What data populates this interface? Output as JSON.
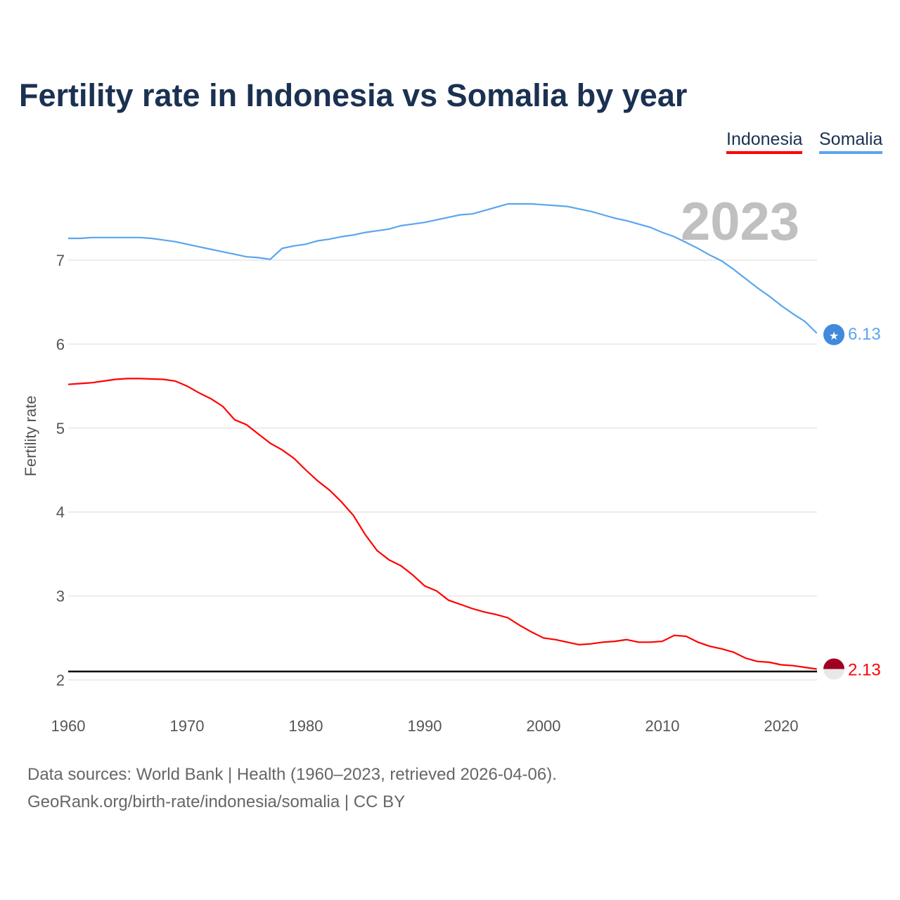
{
  "title": "Fertility rate in Indonesia vs Somalia by year",
  "current_year": "2023",
  "source_line1": "Data sources: World Bank | Health (1960–2023, retrieved 2026-04-06).",
  "source_line2": "GeoRank.org/birth-rate/indonesia/somalia | CC BY",
  "chart_data": {
    "type": "line",
    "title": "Fertility rate in Indonesia vs Somalia by year",
    "xlabel": "",
    "ylabel": "Fertility rate",
    "xlim": [
      1960,
      2023
    ],
    "ylim": [
      2,
      7.8
    ],
    "x_ticks": [
      "1960",
      "1970",
      "1980",
      "1990",
      "2000",
      "2010",
      "2020"
    ],
    "y_ticks": [
      "2",
      "3",
      "4",
      "5",
      "6",
      "7"
    ],
    "grid": true,
    "legend": "top-right",
    "reference_line": {
      "value": 2.1,
      "color": "#000000"
    },
    "x": [
      1960,
      1961,
      1962,
      1963,
      1964,
      1965,
      1966,
      1967,
      1968,
      1969,
      1970,
      1971,
      1972,
      1973,
      1974,
      1975,
      1976,
      1977,
      1978,
      1979,
      1980,
      1981,
      1982,
      1983,
      1984,
      1985,
      1986,
      1987,
      1988,
      1989,
      1990,
      1991,
      1992,
      1993,
      1994,
      1995,
      1996,
      1997,
      1998,
      1999,
      2000,
      2001,
      2002,
      2003,
      2004,
      2005,
      2006,
      2007,
      2008,
      2009,
      2010,
      2011,
      2012,
      2013,
      2014,
      2015,
      2016,
      2017,
      2018,
      2019,
      2020,
      2021,
      2022,
      2023
    ],
    "series": [
      {
        "name": "Indonesia",
        "color": "#ff0000",
        "end_label": "2.13",
        "values": [
          5.52,
          5.53,
          5.54,
          5.56,
          5.58,
          5.59,
          5.59,
          5.585,
          5.58,
          5.56,
          5.5,
          5.42,
          5.35,
          5.26,
          5.1,
          5.04,
          4.93,
          4.82,
          4.74,
          4.64,
          4.5,
          4.37,
          4.26,
          4.12,
          3.96,
          3.73,
          3.54,
          3.43,
          3.36,
          3.25,
          3.12,
          3.06,
          2.95,
          2.9,
          2.85,
          2.81,
          2.78,
          2.74,
          2.65,
          2.57,
          2.5,
          2.48,
          2.45,
          2.42,
          2.43,
          2.45,
          2.46,
          2.48,
          2.45,
          2.45,
          2.46,
          2.53,
          2.52,
          2.45,
          2.4,
          2.37,
          2.33,
          2.26,
          2.22,
          2.21,
          2.18,
          2.17,
          2.15,
          2.13
        ]
      },
      {
        "name": "Somalia",
        "color": "#5aa5ef",
        "end_label": "6.13",
        "values": [
          7.26,
          7.26,
          7.27,
          7.27,
          7.27,
          7.27,
          7.27,
          7.26,
          7.24,
          7.22,
          7.19,
          7.16,
          7.13,
          7.1,
          7.07,
          7.04,
          7.03,
          7.01,
          7.14,
          7.17,
          7.19,
          7.23,
          7.25,
          7.28,
          7.3,
          7.33,
          7.35,
          7.37,
          7.41,
          7.43,
          7.45,
          7.48,
          7.51,
          7.54,
          7.55,
          7.59,
          7.63,
          7.67,
          7.67,
          7.67,
          7.66,
          7.65,
          7.64,
          7.61,
          7.58,
          7.54,
          7.5,
          7.47,
          7.43,
          7.39,
          7.33,
          7.28,
          7.21,
          7.14,
          7.06,
          6.99,
          6.89,
          6.78,
          6.67,
          6.57,
          6.46,
          6.36,
          6.27,
          6.13
        ]
      }
    ]
  }
}
